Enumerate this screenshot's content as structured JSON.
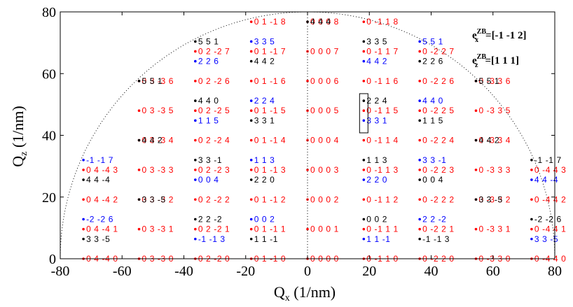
{
  "chart_data": {
    "type": "scatter",
    "xlabel": "Q",
    "xlabel_sub": "x",
    "xlabel_unit": " (1/nm)",
    "ylabel": "Q",
    "ylabel_sub": "z",
    "ylabel_unit": " (1/nm)",
    "xlim": [
      -80,
      80
    ],
    "ylim": [
      0,
      80
    ],
    "xticks": [
      "-80",
      "-60",
      "-40",
      "-20",
      "0",
      "20",
      "40",
      "60",
      "80"
    ],
    "yticks": [
      "0",
      "20",
      "40",
      "60",
      "80"
    ],
    "grid": false,
    "legend": [
      {
        "text": "e",
        "sub": "x",
        "sup": "ZB",
        "value": "=[-1 -1  2]"
      },
      {
        "text": "e",
        "sub": "z",
        "sup": "ZB",
        "value": "=[1  1  1]"
      }
    ],
    "colors": {
      "red": "#ff0000",
      "blue": "#0000ff",
      "black": "#000000"
    },
    "series": [
      {
        "color": "red",
        "points": [
          {
            "x": -72.5,
            "y": 0,
            "label": "0 4 -4 0"
          },
          {
            "x": -54.5,
            "y": 0,
            "label": "0 3 -3 0"
          },
          {
            "x": -36.3,
            "y": 0,
            "label": "0 2 -2 0"
          },
          {
            "x": -18.2,
            "y": 0,
            "label": "0 1 -1 0"
          },
          {
            "x": 0,
            "y": 0,
            "label": "0 0 0 0"
          },
          {
            "x": 18.2,
            "y": 0,
            "label": "0 -1 1 0"
          },
          {
            "x": 36.3,
            "y": 0,
            "label": "0 -2 2 0"
          },
          {
            "x": 54.5,
            "y": 0,
            "label": "0 -3 3 0"
          },
          {
            "x": 72.5,
            "y": 0,
            "label": "0 -4 4 0"
          },
          {
            "x": -72.5,
            "y": 9.6,
            "label": "0 4 -4 1"
          },
          {
            "x": -54.5,
            "y": 9.6,
            "label": "0 3 -3 1"
          },
          {
            "x": -36.3,
            "y": 9.6,
            "label": "0 2 -2 1"
          },
          {
            "x": -18.2,
            "y": 9.6,
            "label": "0 1 -1 1"
          },
          {
            "x": 0,
            "y": 9.6,
            "label": "0 0 0 1"
          },
          {
            "x": 18.2,
            "y": 9.6,
            "label": "0 -1 1 1"
          },
          {
            "x": 36.3,
            "y": 9.6,
            "label": "0 -2 2 1"
          },
          {
            "x": 54.5,
            "y": 9.6,
            "label": "0 -3 3 1"
          },
          {
            "x": 72.5,
            "y": 9.6,
            "label": "0 -4 4 1"
          },
          {
            "x": -72.5,
            "y": 19.2,
            "label": "0 4 -4 2"
          },
          {
            "x": -54.5,
            "y": 19.2,
            "label": "0 3 -3 2"
          },
          {
            "x": -36.3,
            "y": 19.2,
            "label": "0 2 -2 2"
          },
          {
            "x": -18.2,
            "y": 19.2,
            "label": "0 1 -1 2"
          },
          {
            "x": 0,
            "y": 19.2,
            "label": "0 0 0 2"
          },
          {
            "x": 18.2,
            "y": 19.2,
            "label": "0 -1 1 2"
          },
          {
            "x": 36.3,
            "y": 19.2,
            "label": "0 -2 2 2"
          },
          {
            "x": 54.5,
            "y": 19.2,
            "label": "0 -3 3 2"
          },
          {
            "x": 72.5,
            "y": 19.2,
            "label": "0 -4 4 2"
          },
          {
            "x": -72.5,
            "y": 28.8,
            "label": "0 4 -4 3"
          },
          {
            "x": -54.5,
            "y": 28.8,
            "label": "0 3 -3 3"
          },
          {
            "x": -36.3,
            "y": 28.8,
            "label": "0 2 -2 3"
          },
          {
            "x": -18.2,
            "y": 28.8,
            "label": "0 1 -1 3"
          },
          {
            "x": 0,
            "y": 28.8,
            "label": "0 0 0 3"
          },
          {
            "x": 18.2,
            "y": 28.8,
            "label": "0 -1 1 3"
          },
          {
            "x": 36.3,
            "y": 28.8,
            "label": "0 -2 2 3"
          },
          {
            "x": 54.5,
            "y": 28.8,
            "label": "0 -3 3 3"
          },
          {
            "x": 72.5,
            "y": 28.8,
            "label": "0 -4 4 3"
          },
          {
            "x": -54.5,
            "y": 38.4,
            "label": "0 3 -3 4"
          },
          {
            "x": -36.3,
            "y": 38.4,
            "label": "0 2 -2 4"
          },
          {
            "x": -18.2,
            "y": 38.4,
            "label": "0 1 -1 4"
          },
          {
            "x": 0,
            "y": 38.4,
            "label": "0 0 0 4"
          },
          {
            "x": 18.2,
            "y": 38.4,
            "label": "0 -1 1 4"
          },
          {
            "x": 36.3,
            "y": 38.4,
            "label": "0 -2 2 4"
          },
          {
            "x": 54.5,
            "y": 38.4,
            "label": "0 -3 3 4"
          },
          {
            "x": -54.5,
            "y": 48.0,
            "label": "0 3 -3 5"
          },
          {
            "x": -36.3,
            "y": 48.0,
            "label": "0 2 -2 5"
          },
          {
            "x": -18.2,
            "y": 48.0,
            "label": "0 1 -1 5"
          },
          {
            "x": 0,
            "y": 48.0,
            "label": "0 0 0 5"
          },
          {
            "x": 18.2,
            "y": 48.0,
            "label": "0 -1 1 5"
          },
          {
            "x": 36.3,
            "y": 48.0,
            "label": "0 -2 2 5"
          },
          {
            "x": 54.5,
            "y": 48.0,
            "label": "0 -3 3 5"
          },
          {
            "x": -54.5,
            "y": 57.6,
            "label": "0 3 -3 6"
          },
          {
            "x": -36.3,
            "y": 57.6,
            "label": "0 2 -2 6"
          },
          {
            "x": -18.2,
            "y": 57.6,
            "label": "0 1 -1 6"
          },
          {
            "x": 0,
            "y": 57.6,
            "label": "0 0 0 6"
          },
          {
            "x": 18.2,
            "y": 57.6,
            "label": "0 -1 1 6"
          },
          {
            "x": 36.3,
            "y": 57.6,
            "label": "0 -2 2 6"
          },
          {
            "x": 54.5,
            "y": 57.6,
            "label": "0 -3 3 6"
          },
          {
            "x": -36.3,
            "y": 67.2,
            "label": "0 2 -2 7"
          },
          {
            "x": -18.2,
            "y": 67.2,
            "label": "0 1 -1 7"
          },
          {
            "x": 0,
            "y": 67.2,
            "label": "0 0 0 7"
          },
          {
            "x": 18.2,
            "y": 67.2,
            "label": "0 -1 1 7"
          },
          {
            "x": 36.3,
            "y": 67.2,
            "label": "0 -2 2 7"
          },
          {
            "x": -18.2,
            "y": 76.8,
            "label": "0 1 -1 8"
          },
          {
            "x": 0,
            "y": 76.8,
            "label": "0 0 0 8"
          },
          {
            "x": 18.2,
            "y": 76.8,
            "label": "0 -1 1 8"
          }
        ]
      },
      {
        "color": "black",
        "points": [
          {
            "x": -72.5,
            "y": 6.4,
            "label": "3 3 -5"
          },
          {
            "x": -36.3,
            "y": 12.8,
            "label": "2 2 -2"
          },
          {
            "x": -18.2,
            "y": 6.4,
            "label": "1 1 -1"
          },
          {
            "x": 18.2,
            "y": 12.8,
            "label": "0 0 2"
          },
          {
            "x": 36.3,
            "y": 6.4,
            "label": "-1 -1 3"
          },
          {
            "x": 72.5,
            "y": 12.8,
            "label": "-2 -2 6"
          },
          {
            "x": -54.5,
            "y": 19.2,
            "label": "3 3 -5"
          },
          {
            "x": 54.5,
            "y": 19.2,
            "label": "3 3 -5"
          },
          {
            "x": -72.5,
            "y": 25.6,
            "label": "4 4 -4"
          },
          {
            "x": -18.2,
            "y": 25.6,
            "label": "2 2 0"
          },
          {
            "x": 36.3,
            "y": 25.6,
            "label": "0 0 4"
          },
          {
            "x": -36.3,
            "y": 32.0,
            "label": "3 3 -1"
          },
          {
            "x": 18.2,
            "y": 32.0,
            "label": "1 1 3"
          },
          {
            "x": 72.5,
            "y": 32.0,
            "label": "-1 -1 7"
          },
          {
            "x": -54.5,
            "y": 38.4,
            "label": "4 4 2"
          },
          {
            "x": 54.5,
            "y": 38.4,
            "label": "4 4 2"
          },
          {
            "x": -18.2,
            "y": 44.8,
            "label": "3 3 1"
          },
          {
            "x": 36.3,
            "y": 44.8,
            "label": "1 1 5"
          },
          {
            "x": -36.3,
            "y": 51.2,
            "label": "4 4 0"
          },
          {
            "x": 18.2,
            "y": 51.2,
            "label": "2 2 4"
          },
          {
            "x": -54.5,
            "y": 57.6,
            "label": "5 5 1"
          },
          {
            "x": 54.5,
            "y": 57.6,
            "label": "5 5 1"
          },
          {
            "x": -18.2,
            "y": 64.0,
            "label": "4 4 2"
          },
          {
            "x": 36.3,
            "y": 64.0,
            "label": "2 2 6"
          },
          {
            "x": -36.3,
            "y": 70.4,
            "label": "5 5 1"
          },
          {
            "x": 18.2,
            "y": 70.4,
            "label": "3 3 5"
          },
          {
            "x": 0,
            "y": 76.8,
            "label": "4 4 4"
          }
        ]
      },
      {
        "color": "blue",
        "points": [
          {
            "x": -36.3,
            "y": 6.4,
            "label": "-1 -1 3"
          },
          {
            "x": 18.2,
            "y": 6.4,
            "label": "1 1 -1"
          },
          {
            "x": 72.5,
            "y": 6.4,
            "label": "3 3 -5"
          },
          {
            "x": -72.5,
            "y": 12.8,
            "label": "-2 -2 6"
          },
          {
            "x": -18.2,
            "y": 12.8,
            "label": "0 0 2"
          },
          {
            "x": 36.3,
            "y": 12.8,
            "label": "2 2 -2"
          },
          {
            "x": -36.3,
            "y": 25.6,
            "label": "0 0 4"
          },
          {
            "x": 18.2,
            "y": 25.6,
            "label": "2 2 0"
          },
          {
            "x": 72.5,
            "y": 25.6,
            "label": "4 4 -4"
          },
          {
            "x": -72.5,
            "y": 32.0,
            "label": "-1 -1 7"
          },
          {
            "x": -18.2,
            "y": 32.0,
            "label": "1 1 3"
          },
          {
            "x": 36.3,
            "y": 32.0,
            "label": "3 3 -1"
          },
          {
            "x": -36.3,
            "y": 44.8,
            "label": "1 1 5"
          },
          {
            "x": 18.2,
            "y": 44.8,
            "label": "3 3 1"
          },
          {
            "x": -18.2,
            "y": 51.2,
            "label": "2 2 4"
          },
          {
            "x": 36.3,
            "y": 51.2,
            "label": "4 4 0"
          },
          {
            "x": -36.3,
            "y": 64.0,
            "label": "2 2 6"
          },
          {
            "x": 18.2,
            "y": 64.0,
            "label": "4 4 2"
          },
          {
            "x": -18.2,
            "y": 70.4,
            "label": "3 3 5"
          },
          {
            "x": 36.3,
            "y": 70.4,
            "label": "5 5 1"
          }
        ]
      }
    ]
  }
}
